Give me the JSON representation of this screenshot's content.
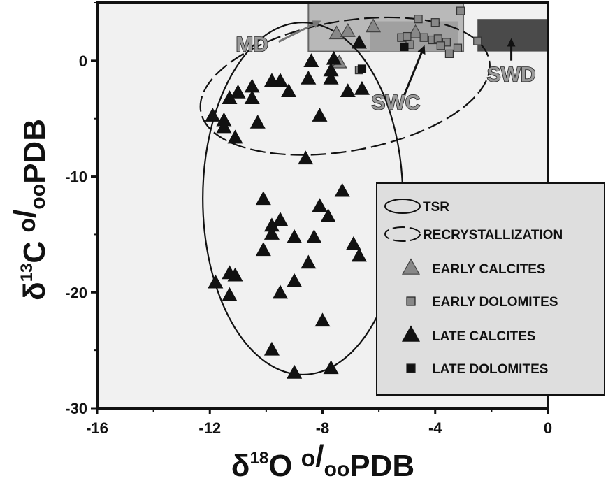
{
  "chart_data": {
    "type": "scatter",
    "xlabel": {
      "prefix": "δ",
      "sup": "18",
      "main": "O ",
      "permil_sup": "o",
      "permil_sub": "oo",
      "suffix": "PDB"
    },
    "ylabel": {
      "prefix": "δ",
      "sup": "13",
      "main": "C ",
      "permil_sup": "o",
      "permil_sub": "oo",
      "suffix": "PDB"
    },
    "xlim": [
      -16,
      0
    ],
    "ylim": [
      -30,
      5
    ],
    "xticks": [
      -16,
      -12,
      -8,
      -4,
      0
    ],
    "yticks": [
      0,
      -10,
      -20,
      -30
    ],
    "xtick_labels": [
      "-16",
      "-12",
      "-8",
      "-4",
      "0"
    ],
    "ytick_labels": [
      "0",
      "-10",
      "-20",
      "-30"
    ],
    "plot_background": "#f1f1f1",
    "legend_position": "bottom-right",
    "legend": [
      {
        "label": "TSR",
        "symbol": "ellipse-solid"
      },
      {
        "label": "RECRYSTALLIZATION",
        "symbol": "ellipse-dashed"
      },
      {
        "label": "EARLY CALCITES",
        "symbol": "triangle",
        "color": "#888888"
      },
      {
        "label": "EARLY DOLOMITES",
        "symbol": "square",
        "color": "#888888"
      },
      {
        "label": "LATE CALCITES",
        "symbol": "triangle",
        "color": "#111111"
      },
      {
        "label": "LATE DOLOMITES",
        "symbol": "square",
        "color": "#111111"
      }
    ],
    "regions": [
      {
        "label": "MD",
        "x": [
          -8.5,
          -3.0
        ],
        "y": [
          0.8,
          5.0
        ],
        "color": "#b9b9b9"
      },
      {
        "label": "SWC",
        "x": [
          -6.3,
          -3.2
        ],
        "y": [
          0.8,
          3.4
        ],
        "color": "#a0a0a0"
      },
      {
        "label": "SWD",
        "x": [
          -2.5,
          0.0
        ],
        "y": [
          0.8,
          3.6
        ],
        "color": "#4a4a4a"
      }
    ],
    "envelopes": [
      {
        "label": "TSR",
        "style": "solid",
        "cx": -8.7,
        "cy": -11.9,
        "rx": 3.55,
        "ry": 15.2
      },
      {
        "label": "RECRYSTALLIZATION",
        "style": "dashed",
        "cx": -7.2,
        "cy": -2.2,
        "rx": 5.2,
        "ry": 5.6,
        "rotation_deg": -10
      }
    ],
    "annotations": [
      {
        "text": "MD",
        "text_x": -10.5,
        "text_y": 0.8,
        "arrow_to": [
          -8.1,
          3.4
        ]
      },
      {
        "text": "SWC",
        "text_x": -5.4,
        "text_y": -4.2,
        "arrow_to": [
          -4.4,
          1.2
        ]
      },
      {
        "text": "SWD",
        "text_x": -1.3,
        "text_y": -1.8,
        "arrow_to": [
          -1.3,
          1.8
        ]
      }
    ],
    "series": [
      {
        "name": "EARLY CALCITES",
        "marker": "triangle",
        "color": "#888888",
        "points": [
          [
            -7.5,
            2.3
          ],
          [
            -7.1,
            2.5
          ],
          [
            -6.2,
            2.9
          ],
          [
            -7.4,
            -0.2
          ],
          [
            -4.7,
            2.4
          ]
        ]
      },
      {
        "name": "EARLY DOLOMITES",
        "marker": "square",
        "color": "#888888",
        "points": [
          [
            -4.6,
            3.6
          ],
          [
            -4.0,
            3.3
          ],
          [
            -3.1,
            4.3
          ],
          [
            -5.2,
            2.0
          ],
          [
            -4.4,
            2.0
          ],
          [
            -4.1,
            1.8
          ],
          [
            -3.9,
            1.9
          ],
          [
            -3.6,
            1.6
          ],
          [
            -3.8,
            1.3
          ],
          [
            -3.5,
            0.6
          ],
          [
            -3.2,
            1.1
          ],
          [
            -2.5,
            1.7
          ],
          [
            -4.9,
            1.4
          ],
          [
            -5.0,
            2.1
          ],
          [
            -6.7,
            -0.8
          ]
        ]
      },
      {
        "name": "LATE CALCITES",
        "marker": "triangle",
        "color": "#111111",
        "points": [
          [
            -6.7,
            1.5
          ],
          [
            -7.6,
            0.1
          ],
          [
            -8.4,
            -0.1
          ],
          [
            -7.7,
            -0.9
          ],
          [
            -7.7,
            -1.6
          ],
          [
            -8.5,
            -1.6
          ],
          [
            -9.5,
            -1.8
          ],
          [
            -9.8,
            -1.8
          ],
          [
            -10.5,
            -2.3
          ],
          [
            -11.0,
            -2.8
          ],
          [
            -9.2,
            -2.7
          ],
          [
            -10.5,
            -3.3
          ],
          [
            -11.3,
            -3.3
          ],
          [
            -11.9,
            -4.8
          ],
          [
            -11.5,
            -5.2
          ],
          [
            -10.3,
            -5.4
          ],
          [
            -11.5,
            -5.8
          ],
          [
            -11.1,
            -6.7
          ],
          [
            -6.6,
            -2.5
          ],
          [
            -7.1,
            -2.7
          ],
          [
            -8.1,
            -4.8
          ],
          [
            -8.6,
            -8.5
          ],
          [
            -10.1,
            -12.0
          ],
          [
            -9.5,
            -13.8
          ],
          [
            -9.8,
            -14.3
          ],
          [
            -9.8,
            -15.0
          ],
          [
            -10.1,
            -16.4
          ],
          [
            -9.0,
            -15.3
          ],
          [
            -8.3,
            -15.3
          ],
          [
            -8.1,
            -12.6
          ],
          [
            -7.8,
            -13.5
          ],
          [
            -7.3,
            -11.3
          ],
          [
            -6.9,
            -15.9
          ],
          [
            -6.7,
            -16.9
          ],
          [
            -8.5,
            -17.5
          ],
          [
            -11.3,
            -18.4
          ],
          [
            -11.1,
            -18.6
          ],
          [
            -11.8,
            -19.2
          ],
          [
            -11.3,
            -20.3
          ],
          [
            -9.5,
            -20.1
          ],
          [
            -9.0,
            -19.1
          ],
          [
            -8.0,
            -22.5
          ],
          [
            -9.8,
            -25.0
          ],
          [
            -9.0,
            -27.0
          ],
          [
            -7.7,
            -26.6
          ]
        ]
      },
      {
        "name": "LATE DOLOMITES",
        "marker": "square",
        "color": "#111111",
        "points": [
          [
            -5.1,
            1.2
          ],
          [
            -6.6,
            -0.7
          ]
        ]
      }
    ]
  }
}
